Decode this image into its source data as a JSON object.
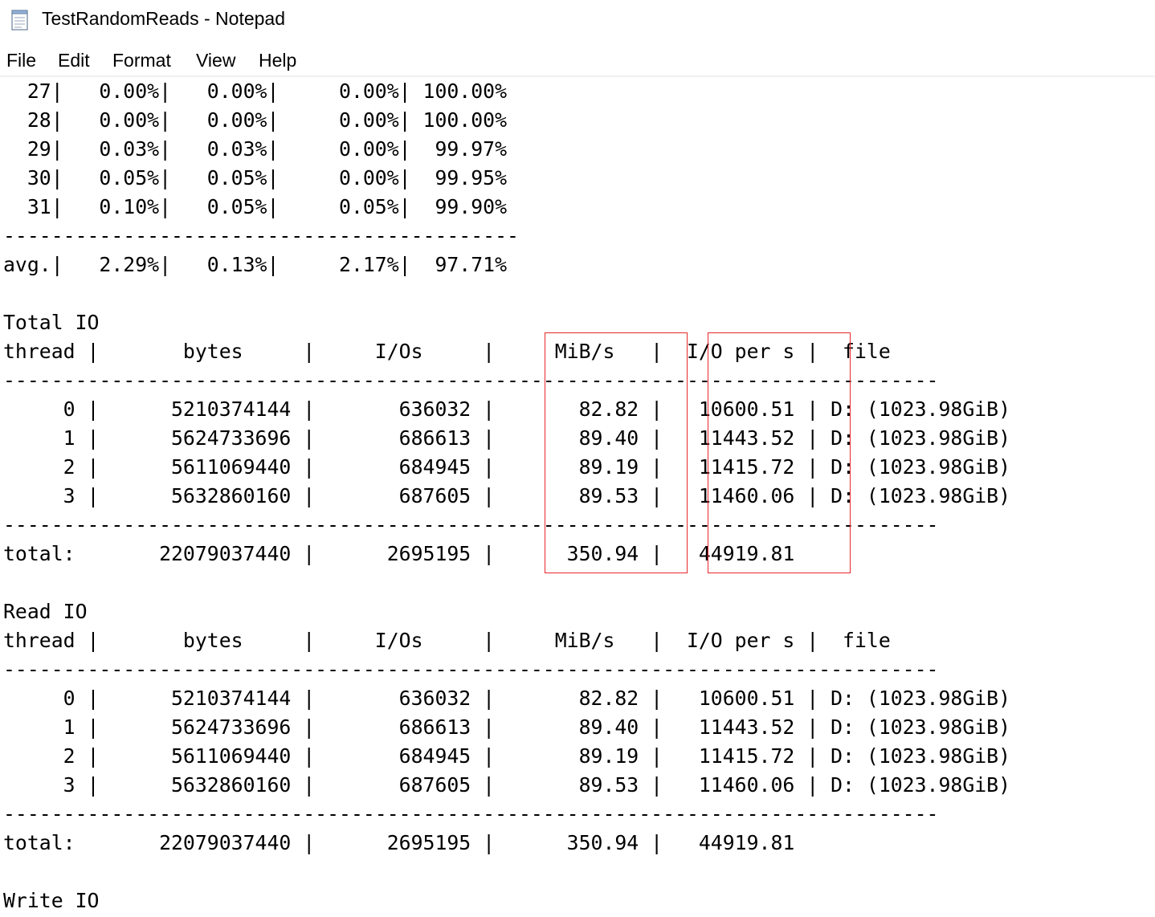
{
  "window": {
    "title": "TestRandomReads - Notepad",
    "icon": "notepad-icon"
  },
  "menu": [
    "File",
    "Edit",
    "Format",
    "View",
    "Help"
  ],
  "document": {
    "lines": [
      "  27|   0.00%|   0.00%|     0.00%| 100.00%",
      "  28|   0.00%|   0.00%|     0.00%| 100.00%",
      "  29|   0.03%|   0.03%|     0.00%|  99.97%",
      "  30|   0.05%|   0.05%|     0.00%|  99.95%",
      "  31|   0.10%|   0.05%|     0.05%|  99.90%",
      "-------------------------------------------",
      "avg.|   2.29%|   0.13%|     2.17%|  97.71%",
      "",
      "Total IO",
      "thread |       bytes     |     I/Os     |     MiB/s   |  I/O per s |  file",
      "------------------------------------------------------------------------------",
      "     0 |      5210374144 |       636032 |       82.82 |   10600.51 | D: (1023.98GiB)",
      "     1 |      5624733696 |       686613 |       89.40 |   11443.52 | D: (1023.98GiB)",
      "     2 |      5611069440 |       684945 |       89.19 |   11415.72 | D: (1023.98GiB)",
      "     3 |      5632860160 |       687605 |       89.53 |   11460.06 | D: (1023.98GiB)",
      "------------------------------------------------------------------------------",
      "total:       22079037440 |      2695195 |      350.94 |   44919.81",
      "",
      "Read IO",
      "thread |       bytes     |     I/Os     |     MiB/s   |  I/O per s |  file",
      "------------------------------------------------------------------------------",
      "     0 |      5210374144 |       636032 |       82.82 |   10600.51 | D: (1023.98GiB)",
      "     1 |      5624733696 |       686613 |       89.40 |   11443.52 | D: (1023.98GiB)",
      "     2 |      5611069440 |       684945 |       89.19 |   11415.72 | D: (1023.98GiB)",
      "     3 |      5632860160 |       687605 |       89.53 |   11460.06 | D: (1023.98GiB)",
      "------------------------------------------------------------------------------",
      "total:       22079037440 |      2695195 |      350.94 |   44919.81",
      "",
      "Write IO"
    ]
  },
  "highlight_color": "#e8282d"
}
